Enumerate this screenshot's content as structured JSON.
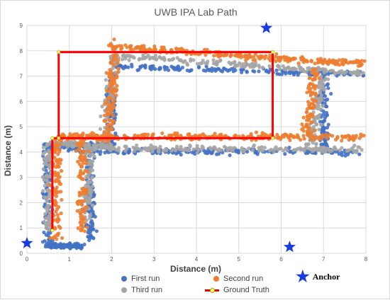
{
  "chart_data": {
    "type": "scatter",
    "title": "UWB IPA Lab Path",
    "xlabel": "Distance (m)",
    "ylabel": "Distance (m)",
    "xlim": [
      0,
      8
    ],
    "ylim": [
      0,
      9
    ],
    "x_ticks": [
      "0",
      "1",
      "2",
      "3",
      "4",
      "5",
      "6",
      "7",
      "8"
    ],
    "y_ticks": [
      "0",
      "1",
      "2",
      "3",
      "4",
      "5",
      "6",
      "7",
      "8",
      "9"
    ],
    "grid": true,
    "legend_position": "bottom",
    "series": [
      {
        "name": "First run",
        "color": "#4472c4",
        "marker": "circle"
      },
      {
        "name": "Second run",
        "color": "#ed7d31",
        "marker": "circle"
      },
      {
        "name": "Third run",
        "color": "#a5a5a5",
        "marker": "circle"
      },
      {
        "name": "Ground Truth",
        "color": "#ff0000",
        "marker": "line",
        "x": [
          0.6,
          0.6,
          0.75,
          0.75,
          5.8,
          5.8,
          0.6
        ],
        "y": [
          0.9,
          4.55,
          4.55,
          7.95,
          7.95,
          4.55,
          4.55
        ]
      }
    ],
    "anchors": {
      "label": "Anchor",
      "color": "#1a3be0",
      "points": [
        {
          "x": 0.0,
          "y": 0.4
        },
        {
          "x": 5.65,
          "y": 8.9
        },
        {
          "x": 6.2,
          "y": 0.25
        }
      ]
    }
  }
}
